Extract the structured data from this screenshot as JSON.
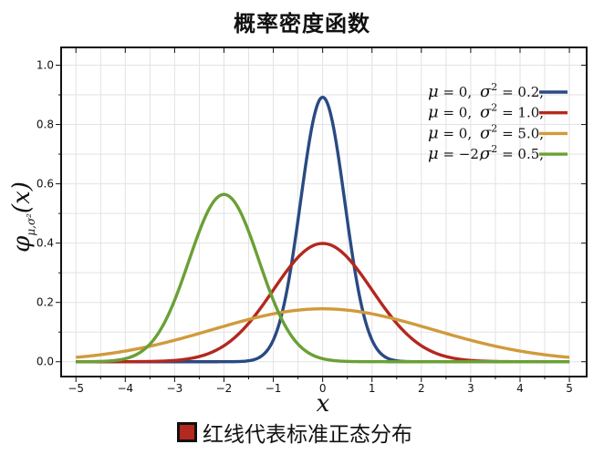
{
  "colors": {
    "blue": "#2a4a82",
    "red": "#b3281f",
    "orange": "#d19a3c",
    "green": "#6aa035",
    "grid": "#e2e2e2"
  },
  "chart_data": {
    "type": "line",
    "title": "概率密度函数",
    "xlabel": "x",
    "ylabel": "φμ,σ²(x)",
    "xlim": [
      -5.3,
      5.35
    ],
    "ylim": [
      -0.05,
      1.06
    ],
    "x_ticks": [
      -5,
      -4,
      -3,
      -2,
      -1,
      0,
      1,
      2,
      3,
      4,
      5
    ],
    "y_ticks": [
      0.0,
      0.2,
      0.4,
      0.6,
      0.8,
      1.0
    ],
    "y_tick_labels": [
      "0.0",
      "0.2",
      "0.4",
      "0.6",
      "0.8",
      "1.0"
    ],
    "grid": true,
    "legend_position": "top-right",
    "series": [
      {
        "mu": 0,
        "sigma2": 0.2,
        "mu_label": "0,",
        "sigma2_label": "0.2,",
        "color": "#2a4a82"
      },
      {
        "mu": 0,
        "sigma2": 1.0,
        "mu_label": "0,",
        "sigma2_label": "1.0,",
        "color": "#b3281f"
      },
      {
        "mu": 0,
        "sigma2": 5.0,
        "mu_label": "0,",
        "sigma2_label": "5.0,",
        "color": "#d19a3c"
      },
      {
        "mu": -2,
        "sigma2": 0.5,
        "mu_label": "−2,",
        "sigma2_label": "0.5,",
        "color": "#6aa035"
      }
    ]
  },
  "caption": {
    "text": "红线代表标准正态分布",
    "swatch_color": "#b3281f"
  }
}
